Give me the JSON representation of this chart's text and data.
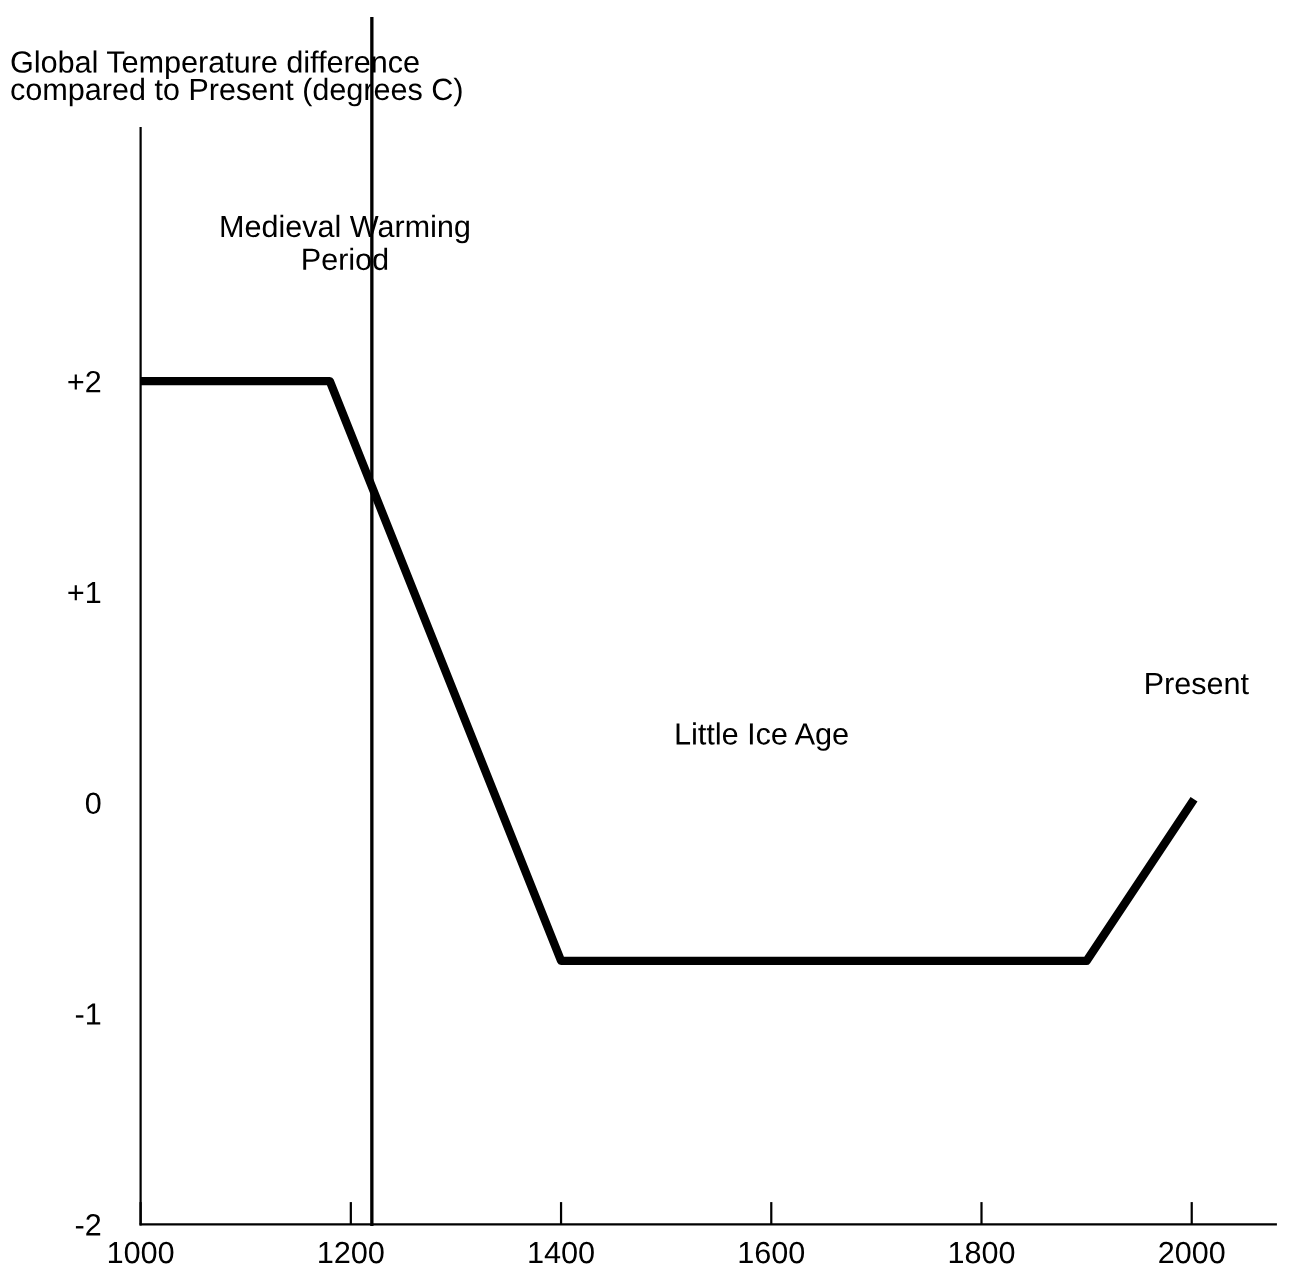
{
  "chart_data": {
    "type": "line",
    "ylabel": "Global Temperature difference\ncompared to Present (degrees C)",
    "x": [
      1000,
      1180,
      1400,
      1900,
      2000
    ],
    "series": [
      {
        "color": "#000000",
        "values": [
          2,
          2,
          -0.75,
          -0.75,
          0
        ]
      }
    ],
    "xlim": [
      1000,
      2080
    ],
    "ylim": [
      -2,
      3.2
    ],
    "xticks": [
      1000,
      1200,
      1400,
      1600,
      1800,
      2000
    ],
    "yticks": [
      {
        "value": 2,
        "label": "+2"
      },
      {
        "value": 1,
        "label": "+1"
      },
      0,
      {
        "value": -1,
        "label": "-1"
      },
      {
        "value": -2,
        "label": "-2"
      }
    ],
    "ref_lines": [
      {
        "axis": "x",
        "value": 1220,
        "color": "#000000"
      }
    ],
    "annotations": [
      "Medieval Warming\nPeriod",
      "Little Ice Age",
      "Present"
    ],
    "grid": false,
    "legend": false,
    "marker": "none",
    "line_style": "solid"
  }
}
